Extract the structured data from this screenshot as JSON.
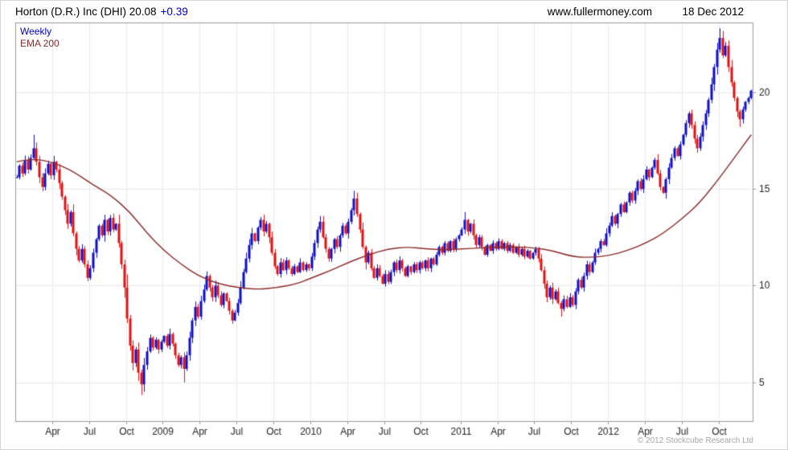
{
  "header": {
    "title_main": "Horton (D.R.) Inc (DHI) 20.08",
    "change": "+0.39",
    "site": "www.fullermoney.com",
    "date": "18 Dec 2012"
  },
  "legend": {
    "series": "Weekly",
    "overlay": "EMA 200"
  },
  "footer": {
    "copyright": "© 2012 Stockcube Research Ltd"
  },
  "chart_data": {
    "type": "candlestick",
    "title": "Horton (D.R.) Inc (DHI)",
    "symbol": "DHI",
    "interval": "weekly",
    "last_price": 20.08,
    "change": 0.39,
    "overlay": "EMA 200",
    "legend_position": "top-left",
    "grid": true,
    "ylim": [
      3,
      23.6
    ],
    "yticks": [
      5,
      10,
      15,
      20
    ],
    "xticks": [
      {
        "label": "Apr",
        "week": 13
      },
      {
        "label": "Jul",
        "week": 26
      },
      {
        "label": "Oct",
        "week": 39
      },
      {
        "label": "2009",
        "week": 52
      },
      {
        "label": "Apr",
        "week": 65
      },
      {
        "label": "Jul",
        "week": 78
      },
      {
        "label": "Oct",
        "week": 91
      },
      {
        "label": "2010",
        "week": 104
      },
      {
        "label": "Apr",
        "week": 117
      },
      {
        "label": "Jul",
        "week": 130
      },
      {
        "label": "Oct",
        "week": 143
      },
      {
        "label": "2011",
        "week": 157
      },
      {
        "label": "Apr",
        "week": 170
      },
      {
        "label": "Jul",
        "week": 183
      },
      {
        "label": "Oct",
        "week": 196
      },
      {
        "label": "2012",
        "week": 209
      },
      {
        "label": "Apr",
        "week": 222
      },
      {
        "label": "Jul",
        "week": 235
      },
      {
        "label": "Oct",
        "week": 248
      }
    ],
    "closes": [
      15.6,
      16.2,
      15.8,
      16.5,
      16.0,
      16.6,
      17.1,
      16.4,
      15.6,
      15.1,
      15.8,
      16.3,
      15.7,
      16.4,
      16.0,
      15.3,
      14.6,
      13.9,
      13.2,
      13.8,
      12.7,
      11.9,
      11.3,
      11.9,
      11.1,
      10.4,
      10.9,
      11.7,
      12.4,
      13.1,
      12.6,
      13.4,
      12.8,
      13.5,
      12.9,
      13.2,
      12.2,
      11.1,
      9.9,
      8.3,
      6.9,
      6.0,
      6.7,
      5.5,
      4.9,
      5.9,
      6.6,
      7.3,
      6.8,
      7.2,
      6.7,
      7.1,
      7.4,
      6.9,
      7.5,
      7.0,
      6.4,
      5.9,
      6.3,
      5.7,
      6.4,
      7.3,
      8.2,
      8.9,
      8.4,
      9.2,
      9.8,
      10.5,
      9.9,
      9.4,
      10.0,
      9.5,
      9.0,
      9.6,
      9.2,
      8.7,
      8.2,
      8.6,
      9.1,
      9.9,
      10.7,
      11.4,
      12.1,
      12.7,
      12.3,
      13.0,
      13.4,
      12.8,
      13.2,
      12.5,
      11.7,
      11.0,
      10.6,
      11.2,
      10.8,
      11.3,
      10.9,
      10.6,
      11.0,
      10.7,
      11.2,
      10.8,
      11.1,
      10.9,
      11.5,
      12.2,
      12.9,
      13.3,
      12.5,
      11.9,
      11.4,
      11.9,
      12.4,
      12.0,
      12.6,
      13.1,
      12.7,
      13.3,
      13.9,
      14.5,
      13.7,
      12.9,
      12.0,
      11.2,
      11.7,
      10.9,
      10.4,
      10.9,
      10.5,
      10.1,
      10.6,
      10.2,
      10.7,
      11.2,
      10.8,
      11.3,
      10.9,
      10.5,
      11.0,
      10.7,
      11.1,
      10.8,
      11.2,
      10.9,
      11.3,
      10.9,
      11.4,
      11.1,
      11.6,
      12.0,
      11.7,
      12.2,
      11.8,
      12.3,
      11.9,
      12.4,
      12.6,
      12.9,
      13.4,
      12.8,
      13.2,
      12.6,
      12.1,
      12.5,
      12.0,
      11.6,
      12.1,
      11.8,
      12.2,
      11.9,
      12.3,
      11.9,
      12.2,
      11.8,
      12.1,
      11.7,
      12.0,
      11.6,
      11.9,
      11.5,
      11.8,
      11.4,
      11.7,
      11.9,
      11.4,
      10.8,
      10.1,
      9.4,
      9.9,
      9.3,
      9.7,
      9.1,
      8.8,
      9.3,
      8.9,
      9.4,
      9.0,
      9.7,
      10.3,
      9.9,
      10.5,
      11.1,
      10.7,
      11.2,
      11.7,
      11.9,
      12.3,
      12.1,
      12.7,
      13.1,
      13.6,
      13.2,
      13.7,
      14.2,
      13.8,
      14.3,
      14.8,
      14.4,
      14.9,
      15.4,
      15.0,
      15.5,
      16.0,
      15.6,
      16.1,
      16.5,
      15.8,
      15.1,
      14.8,
      15.5,
      16.1,
      16.6,
      17.1,
      16.7,
      17.3,
      17.8,
      18.4,
      18.9,
      18.3,
      17.6,
      17.1,
      17.7,
      18.3,
      18.9,
      19.6,
      20.4,
      21.3,
      22.2,
      22.8,
      21.9,
      22.4,
      21.3,
      20.5,
      19.7,
      19.0,
      18.6,
      19.1,
      19.5,
      19.7,
      20.08
    ],
    "ema200_points": [
      [
        0,
        16.4
      ],
      [
        6,
        16.6
      ],
      [
        14,
        16.3
      ],
      [
        20,
        15.9
      ],
      [
        27,
        15.2
      ],
      [
        33,
        14.7
      ],
      [
        40,
        13.8
      ],
      [
        46,
        12.7
      ],
      [
        52,
        11.8
      ],
      [
        58,
        11.1
      ],
      [
        64,
        10.5
      ],
      [
        71,
        10.1
      ],
      [
        78,
        9.9
      ],
      [
        85,
        9.8
      ],
      [
        92,
        9.9
      ],
      [
        99,
        10.1
      ],
      [
        104,
        10.4
      ],
      [
        111,
        10.8
      ],
      [
        117,
        11.2
      ],
      [
        124,
        11.6
      ],
      [
        131,
        11.9
      ],
      [
        138,
        12.0
      ],
      [
        144,
        11.9
      ],
      [
        151,
        11.85
      ],
      [
        157,
        11.9
      ],
      [
        164,
        11.95
      ],
      [
        170,
        12.0
      ],
      [
        177,
        12.0
      ],
      [
        183,
        11.95
      ],
      [
        189,
        11.8
      ],
      [
        196,
        11.5
      ],
      [
        202,
        11.45
      ],
      [
        209,
        11.55
      ],
      [
        215,
        11.8
      ],
      [
        222,
        12.2
      ],
      [
        228,
        12.7
      ],
      [
        235,
        13.5
      ],
      [
        241,
        14.3
      ],
      [
        248,
        15.6
      ],
      [
        253,
        16.6
      ],
      [
        257,
        17.4
      ],
      [
        259,
        17.8
      ]
    ],
    "wick_overrides": {
      "6": {
        "high": 17.8
      },
      "44": {
        "low": 4.35
      },
      "59": {
        "low": 5.0
      },
      "107": {
        "high": 13.6
      },
      "119": {
        "high": 14.9
      },
      "158": {
        "high": 13.8
      },
      "192": {
        "low": 8.4
      },
      "248": {
        "high": 23.3
      },
      "255": {
        "low": 18.2
      }
    },
    "colors": {
      "up": "#0f0fc4",
      "down": "#e01212",
      "ema": "#8b2a2a",
      "grid": "#e9e9e9",
      "border": "#9a9a9a",
      "axis_text": "#222222"
    }
  }
}
